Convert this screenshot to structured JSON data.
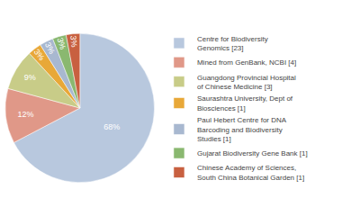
{
  "chart_data": {
    "type": "pie",
    "categories": [
      "Centre for Biodiversity\nGenomics [23]",
      "Mined from GenBank, NCBI [4]",
      "Guangdong Provincial Hospital\nof Chinese Medicine [3]",
      "Saurashtra University, Dept of\nBiosciences [1]",
      "Paul Hebert Centre for DNA\nBarcoding and Biodiversity\nStudies [1]",
      "Gujarat Biodiversity Gene Bank [1]",
      "Chinese Academy of Sciences,\nSouth China Botanical Garden [1]"
    ],
    "values": [
      68,
      12,
      9,
      3,
      3,
      3,
      3
    ],
    "value_labels": [
      "68%",
      "12%",
      "9%",
      "3%",
      "3%",
      "3%",
      "3%"
    ],
    "colors": [
      "#b8c8de",
      "#e09888",
      "#c8cc88",
      "#e8a838",
      "#a8b8d0",
      "#8ab870",
      "#c86040"
    ],
    "data_labels": true,
    "legend": "right"
  }
}
